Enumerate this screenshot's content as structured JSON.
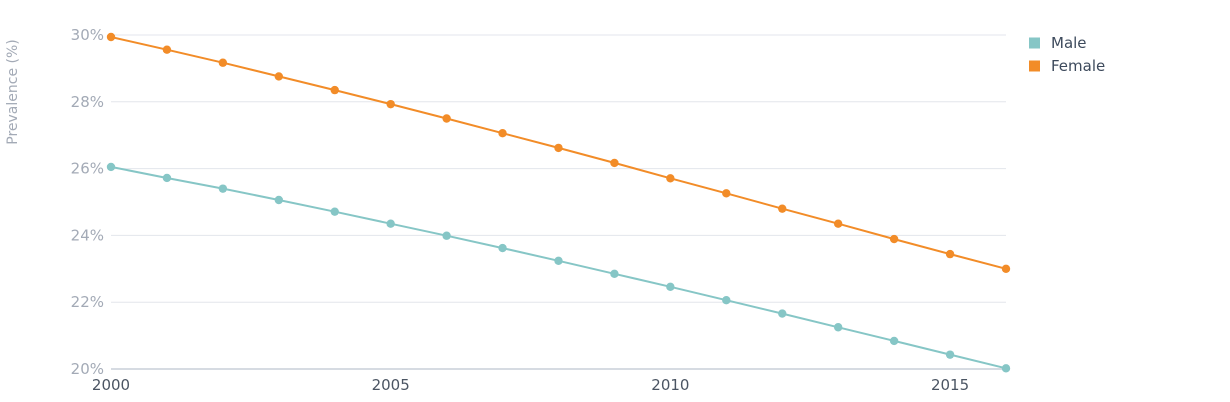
{
  "chart_data": {
    "type": "line",
    "ylabel": "Prevalence (%)",
    "xlabel": "",
    "ylim": [
      20,
      30
    ],
    "xlim": [
      2000,
      2016
    ],
    "y_ticks": [
      "20%",
      "22%",
      "24%",
      "26%",
      "28%",
      "30%"
    ],
    "x_ticks": [
      "2000",
      "2005",
      "2010",
      "2015"
    ],
    "grid": "horizontal",
    "legend_position": "top-right",
    "x": [
      2000,
      2001,
      2002,
      2003,
      2004,
      2005,
      2006,
      2007,
      2008,
      2009,
      2010,
      2011,
      2012,
      2013,
      2014,
      2015,
      2016
    ],
    "series": [
      {
        "name": "Male",
        "color": "#86c6c6",
        "values": [
          26.05,
          25.72,
          25.4,
          25.06,
          24.71,
          24.35,
          23.99,
          23.62,
          23.24,
          22.85,
          22.46,
          22.06,
          21.66,
          21.25,
          20.84,
          20.43,
          20.02
        ]
      },
      {
        "name": "Female",
        "color": "#f28c28",
        "values": [
          29.94,
          29.56,
          29.17,
          28.76,
          28.35,
          27.93,
          27.5,
          27.06,
          26.62,
          26.17,
          25.71,
          25.26,
          24.8,
          24.35,
          23.89,
          23.44,
          23.0
        ]
      }
    ]
  }
}
